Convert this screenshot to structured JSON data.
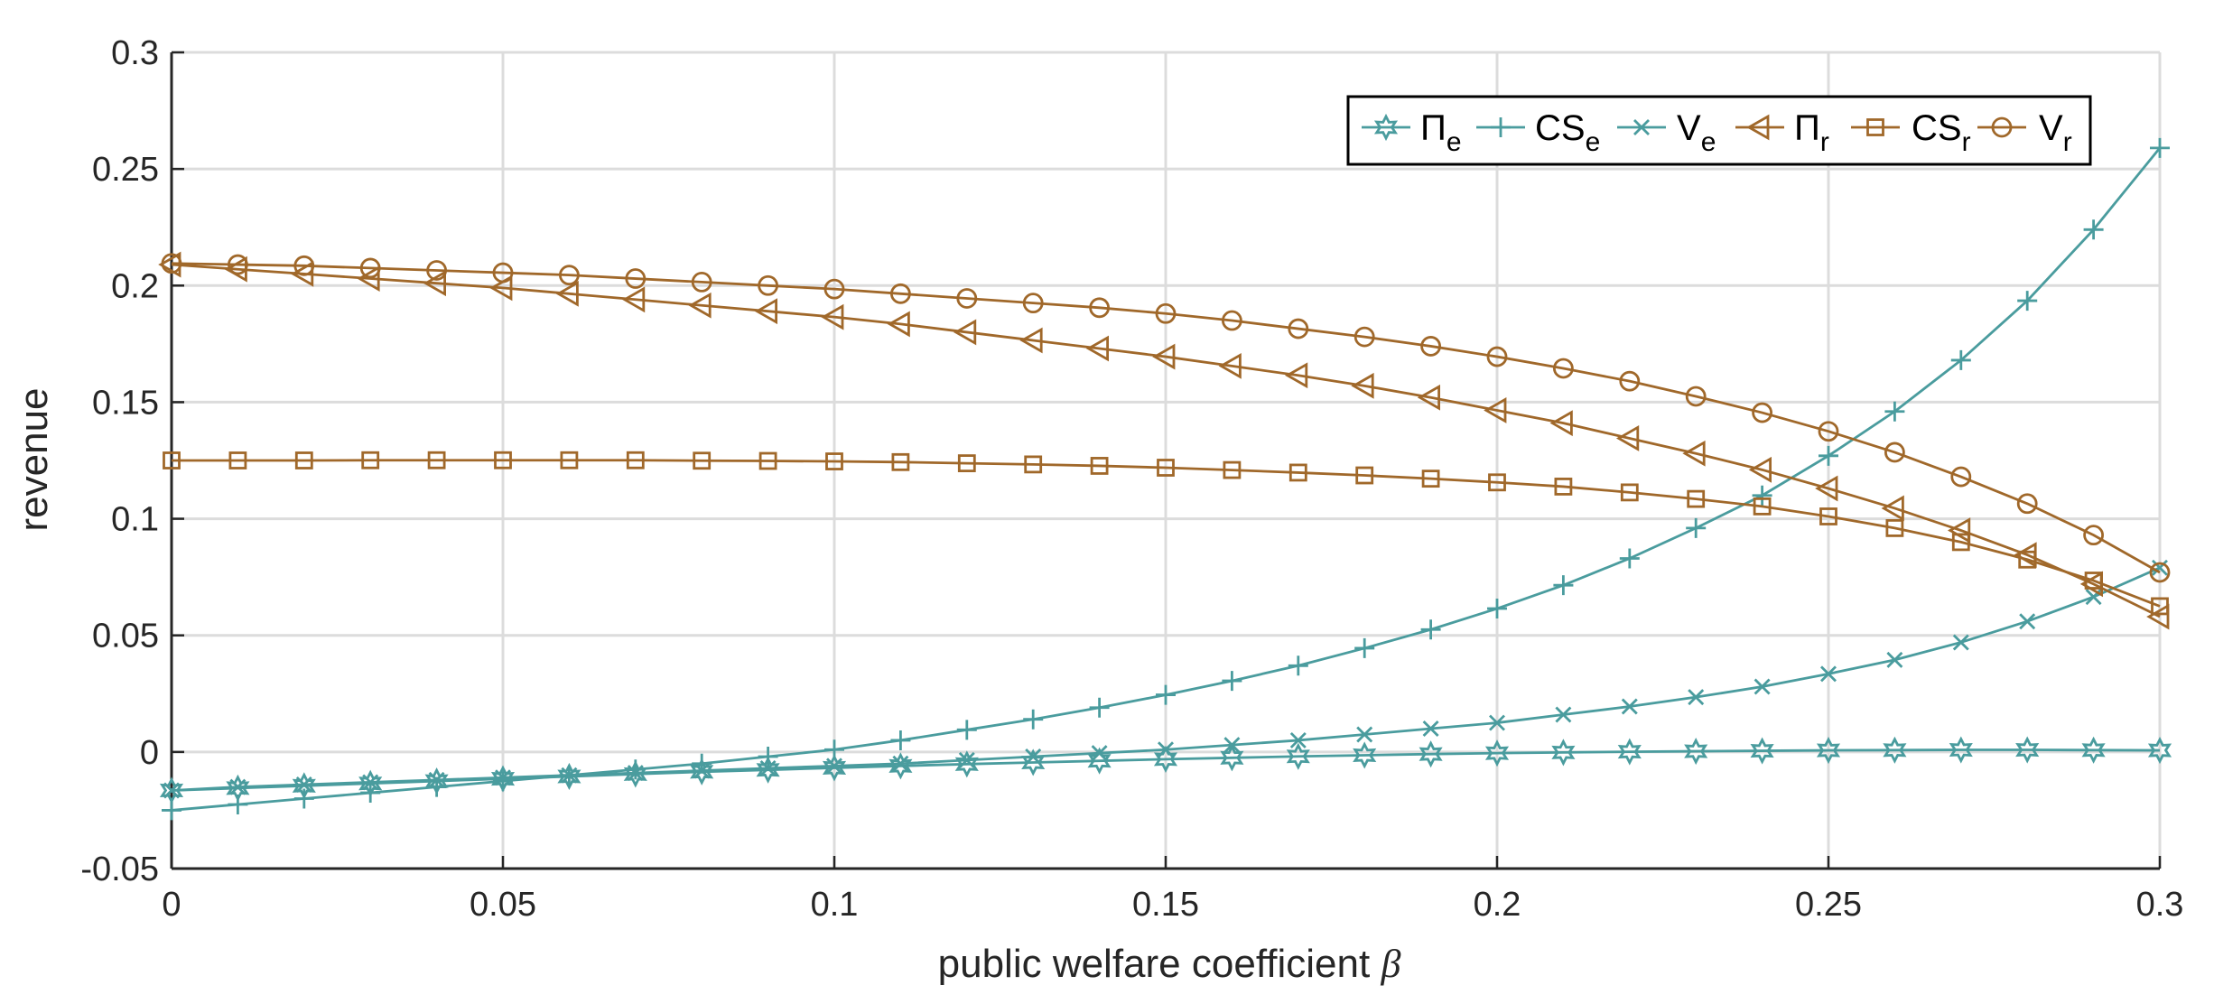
{
  "chart_data": {
    "type": "line",
    "title": "",
    "xlabel": "public welfare coefficient",
    "xlabel_symbol": "β",
    "ylabel": "revenue",
    "xlim": [
      0,
      0.3
    ],
    "ylim": [
      -0.05,
      0.3
    ],
    "grid": true,
    "legend_position": "top-right",
    "x_ticks": [
      "0",
      "0.05",
      "0.1",
      "0.15",
      "0.2",
      "0.25",
      "0.3"
    ],
    "y_ticks": [
      "-0.05",
      "0",
      "0.05",
      "0.1",
      "0.15",
      "0.2",
      "0.25",
      "0.3"
    ],
    "x": [
      0,
      0.01,
      0.02,
      0.03,
      0.04,
      0.05,
      0.06,
      0.07,
      0.08,
      0.09,
      0.1,
      0.11,
      0.12,
      0.13,
      0.14,
      0.15,
      0.16,
      0.17,
      0.18,
      0.19,
      0.2,
      0.21,
      0.22,
      0.23,
      0.24,
      0.25,
      0.26,
      0.27,
      0.28,
      0.29,
      0.3
    ],
    "series": [
      {
        "name": "Π",
        "subscript": "e",
        "marker": "hexagram",
        "color": "#4a9c9e",
        "values": [
          -0.0165,
          -0.0155,
          -0.0145,
          -0.0135,
          -0.0125,
          -0.0115,
          -0.0105,
          -0.0095,
          -0.0085,
          -0.0077,
          -0.0068,
          -0.006,
          -0.0052,
          -0.0045,
          -0.0038,
          -0.0031,
          -0.0025,
          -0.0019,
          -0.0014,
          -0.0009,
          -0.0005,
          -0.0002,
          0.0001,
          0.0003,
          0.0005,
          0.0007,
          0.0008,
          0.0009,
          0.0009,
          0.0008,
          0.0007
        ]
      },
      {
        "name": "CS",
        "subscript": "e",
        "marker": "plus",
        "color": "#4a9c9e",
        "values": [
          -0.025,
          -0.0225,
          -0.02,
          -0.0175,
          -0.015,
          -0.0125,
          -0.01,
          -0.0075,
          -0.005,
          -0.002,
          0.001,
          0.005,
          0.0095,
          0.014,
          0.019,
          0.0245,
          0.0305,
          0.037,
          0.0445,
          0.0525,
          0.0615,
          0.0715,
          0.083,
          0.096,
          0.11,
          0.127,
          0.146,
          0.168,
          0.1935,
          0.224,
          0.259
        ]
      },
      {
        "name": "V",
        "subscript": "e",
        "marker": "cross",
        "color": "#4a9c9e",
        "values": [
          -0.0165,
          -0.015,
          -0.014,
          -0.013,
          -0.012,
          -0.011,
          -0.01,
          -0.009,
          -0.008,
          -0.007,
          -0.006,
          -0.005,
          -0.0035,
          -0.002,
          -0.0005,
          0.001,
          0.003,
          0.005,
          0.0075,
          0.01,
          0.0125,
          0.016,
          0.0195,
          0.0235,
          0.028,
          0.0335,
          0.0395,
          0.047,
          0.056,
          0.0665,
          0.079
        ]
      },
      {
        "name": "Π",
        "subscript": "r",
        "marker": "triangle-left",
        "color": "#a0682a",
        "values": [
          0.209,
          0.207,
          0.205,
          0.203,
          0.201,
          0.199,
          0.1965,
          0.194,
          0.1915,
          0.189,
          0.1865,
          0.1835,
          0.18,
          0.1765,
          0.173,
          0.1695,
          0.1655,
          0.1615,
          0.157,
          0.152,
          0.1465,
          0.141,
          0.1345,
          0.128,
          0.121,
          0.113,
          0.1045,
          0.095,
          0.0845,
          0.072,
          0.058
        ]
      },
      {
        "name": "CS",
        "subscript": "r",
        "marker": "square",
        "color": "#a0682a",
        "values": [
          0.125,
          0.125,
          0.125,
          0.1251,
          0.1251,
          0.1251,
          0.1251,
          0.1251,
          0.1249,
          0.1248,
          0.1246,
          0.1243,
          0.1238,
          0.1233,
          0.1227,
          0.1219,
          0.1209,
          0.1198,
          0.1186,
          0.1172,
          0.1156,
          0.1138,
          0.1113,
          0.1085,
          0.1053,
          0.101,
          0.096,
          0.09,
          0.0825,
          0.0735,
          0.0625
        ]
      },
      {
        "name": "V",
        "subscript": "r",
        "marker": "circle",
        "color": "#a0682a",
        "values": [
          0.2095,
          0.209,
          0.2085,
          0.2075,
          0.2065,
          0.2055,
          0.2045,
          0.203,
          0.2015,
          0.2,
          0.1985,
          0.1965,
          0.1945,
          0.1925,
          0.1905,
          0.188,
          0.185,
          0.1815,
          0.178,
          0.174,
          0.1695,
          0.1645,
          0.159,
          0.1525,
          0.1455,
          0.1375,
          0.1285,
          0.118,
          0.1065,
          0.093,
          0.077
        ]
      }
    ]
  }
}
